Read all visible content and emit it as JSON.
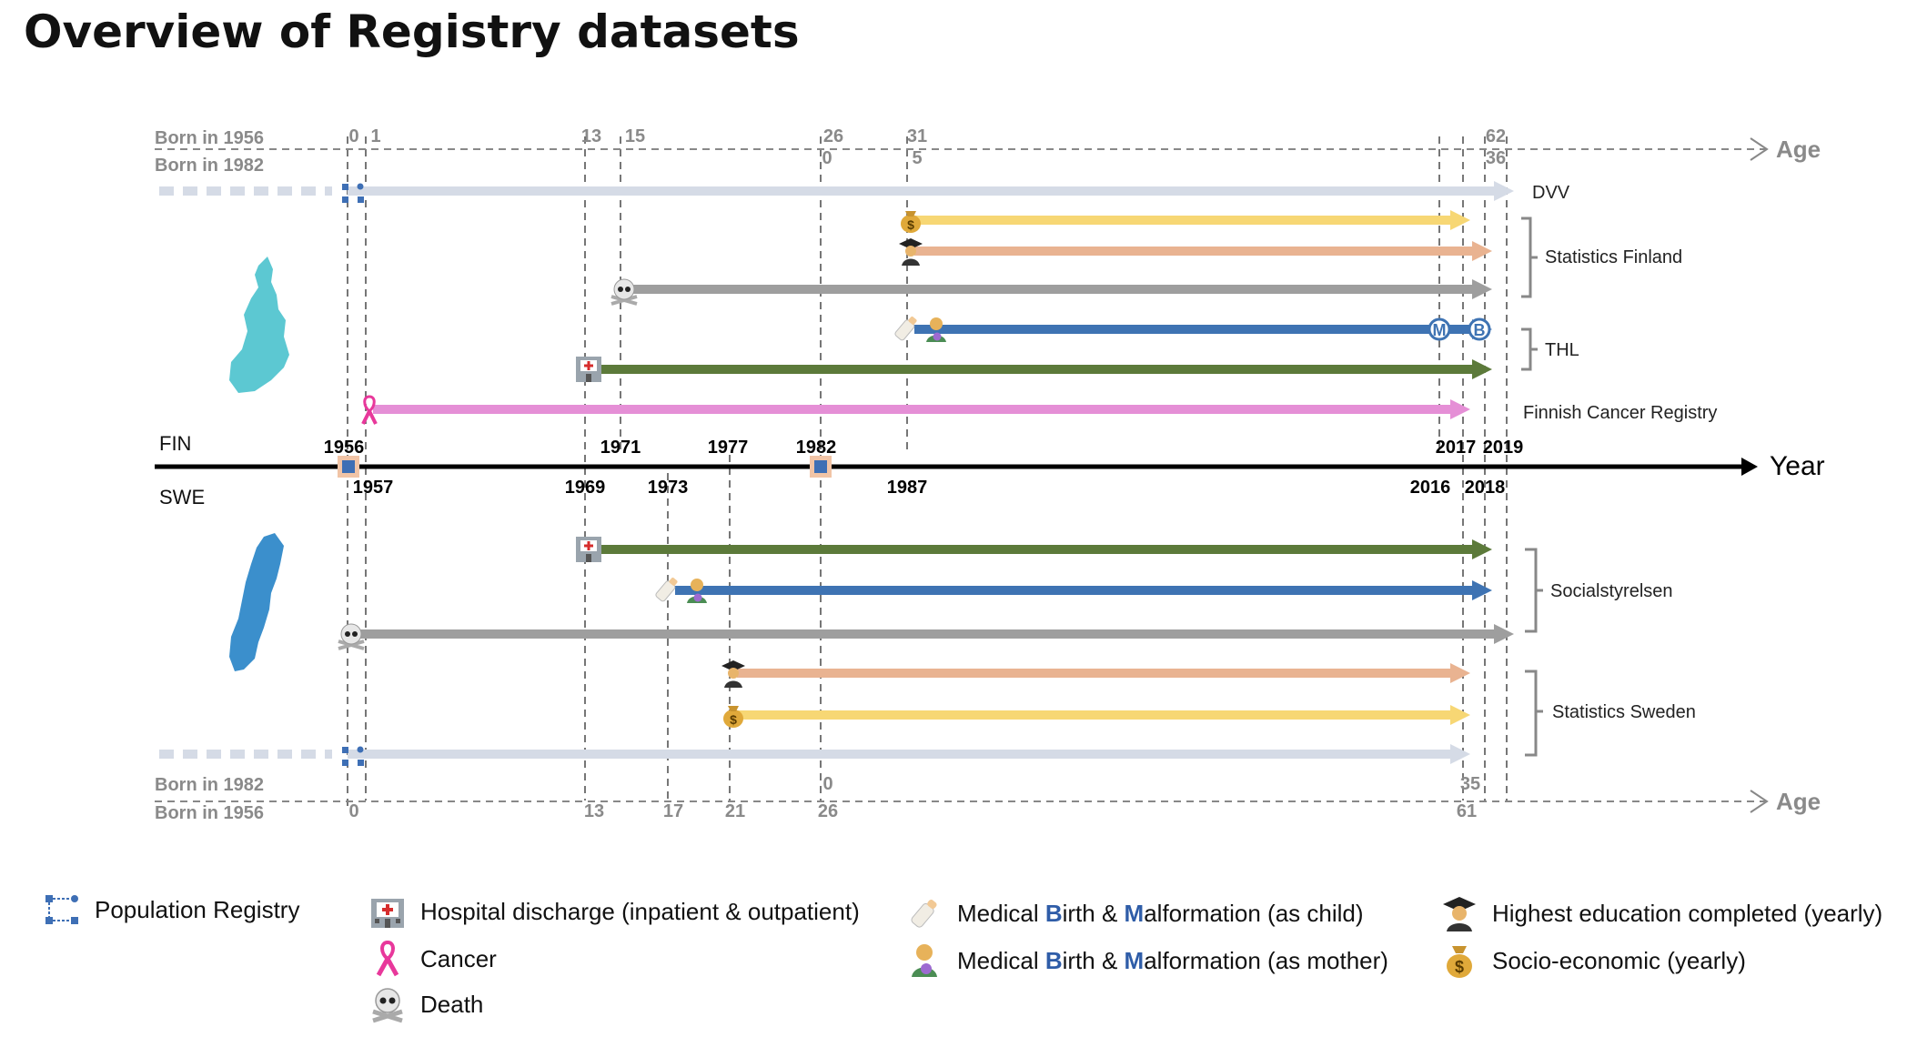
{
  "title": "Overview of Registry datasets",
  "axis": {
    "year_label": "Year",
    "age_label_top": "Age",
    "age_label_bottom": "Age",
    "fin_label": "FIN",
    "swe_label": "SWE",
    "born_1956_top": "Born in 1956",
    "born_1982_top": "Born in 1982",
    "born_1982_bottom": "Born in 1982",
    "born_1956_bottom": "Born in 1956",
    "years_above": [
      "1956",
      "1971",
      "1977",
      "1982",
      "2017",
      "2019"
    ],
    "years_below": [
      "1957",
      "1969",
      "1973",
      "1987",
      "2016",
      "2018"
    ],
    "ages_top_1956": [
      "0",
      "1",
      "13",
      "15",
      "26",
      "31",
      "62"
    ],
    "ages_top_1982": [
      "0",
      "5",
      "36"
    ],
    "ages_bottom_1982": [
      "0",
      "35"
    ],
    "ages_bottom_1956": [
      "0",
      "13",
      "17",
      "21",
      "26",
      "61"
    ]
  },
  "sources": {
    "dvv": "DVV",
    "statistics_finland": "Statistics Finland",
    "thl": "THL",
    "finnish_cancer_registry": "Finnish Cancer Registry",
    "socialstyrelsen": "Socialstyrelsen",
    "statistics_sweden": "Statistics Sweden"
  },
  "bar_markers": {
    "m": "M",
    "b": "B"
  },
  "colors": {
    "population": "#d5dbe6",
    "socioeconomic": "#f7d774",
    "education": "#e9b391",
    "death": "#9e9e9e",
    "birth": "#3e73b3",
    "hospital": "#5c7a3a",
    "cancer": "#e58fd6",
    "finland_map": "#5cc8d2",
    "sweden_map": "#3b8fcc"
  },
  "chart_data": {
    "type": "timeline",
    "x_unit": "year",
    "finland": [
      {
        "registry": "Population Registry",
        "source": "DVV",
        "start": 1956,
        "end": 2019,
        "open_start": true
      },
      {
        "registry": "Socio-economic (yearly)",
        "source": "Statistics Finland",
        "start": 1987,
        "end": 2017
      },
      {
        "registry": "Highest education completed (yearly)",
        "source": "Statistics Finland",
        "start": 1987,
        "end": 2018
      },
      {
        "registry": "Death",
        "source": "Statistics Finland",
        "start": 1971,
        "end": 2018
      },
      {
        "registry": "Medical Birth & Malformation",
        "source": "THL",
        "start": 1987,
        "end": 2018,
        "malformation_end": 2016
      },
      {
        "registry": "Hospital discharge (inpatient & outpatient)",
        "source": "THL",
        "start": 1969,
        "end": 2018
      },
      {
        "registry": "Cancer",
        "source": "Finnish Cancer Registry",
        "start": 1957,
        "end": 2017
      }
    ],
    "sweden": [
      {
        "registry": "Hospital discharge (inpatient & outpatient)",
        "source": "Socialstyrelsen",
        "start": 1969,
        "end": 2018
      },
      {
        "registry": "Medical Birth & Malformation",
        "source": "Socialstyrelsen",
        "start": 1973,
        "end": 2018
      },
      {
        "registry": "Death",
        "source": "Socialstyrelsen",
        "start": 1956,
        "end": 2019
      },
      {
        "registry": "Highest education completed (yearly)",
        "source": "Statistics Sweden",
        "start": 1977,
        "end": 2017
      },
      {
        "registry": "Socio-economic (yearly)",
        "source": "Statistics Sweden",
        "start": 1977,
        "end": 2017
      },
      {
        "registry": "Population Registry",
        "source": "Statistics Sweden",
        "start": 1956,
        "end": 2017,
        "open_start": true
      }
    ]
  },
  "legend": {
    "population": "Population Registry",
    "hospital": "Hospital discharge (inpatient & outpatient)",
    "cancer": "Cancer",
    "death": "Death",
    "birth_child": {
      "pre1": "Medical ",
      "b": "B",
      "mid": "irth & ",
      "m": "M",
      "post": "alformation (as child)"
    },
    "birth_mother": {
      "pre1": "Medical ",
      "b": "B",
      "mid": "irth & ",
      "m": "M",
      "post": "alformation (as mother)"
    },
    "education": "Highest education completed (yearly)",
    "socioeconomic": "Socio-economic (yearly)"
  }
}
